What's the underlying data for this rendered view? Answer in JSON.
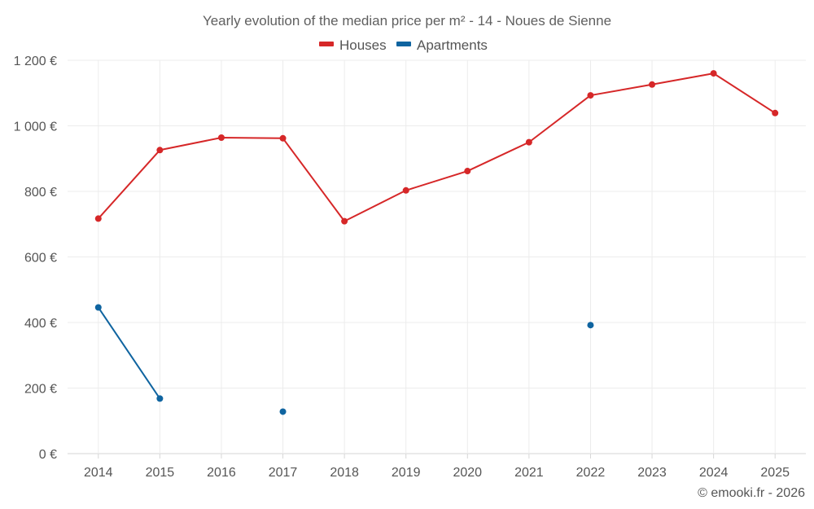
{
  "chart_data": {
    "type": "line",
    "title": "Yearly evolution of the median price per m² - 14 - Noues de Sienne",
    "categories": [
      "2014",
      "2015",
      "2016",
      "2017",
      "2018",
      "2019",
      "2020",
      "2021",
      "2022",
      "2023",
      "2024",
      "2025"
    ],
    "series": [
      {
        "name": "Houses",
        "color": "#d62728",
        "values": [
          717,
          926,
          964,
          962,
          709,
          803,
          862,
          950,
          1093,
          1126,
          1160,
          1039
        ]
      },
      {
        "name": "Apartments",
        "color": "#0f64a0",
        "values": [
          446,
          168,
          null,
          128,
          null,
          null,
          null,
          null,
          392,
          null,
          null,
          null
        ]
      }
    ],
    "ylim": [
      0,
      1200
    ],
    "yticks": [
      0,
      200,
      400,
      600,
      800,
      1000,
      1200
    ],
    "ytick_labels": [
      "0 €",
      "200 €",
      "400 €",
      "600 €",
      "800 €",
      "1 000 €",
      "1 200 €"
    ],
    "xlabel": "",
    "ylabel": "",
    "grid": true,
    "legend_position": "top-center"
  },
  "footer": {
    "credit": "© emooki.fr - 2026"
  }
}
